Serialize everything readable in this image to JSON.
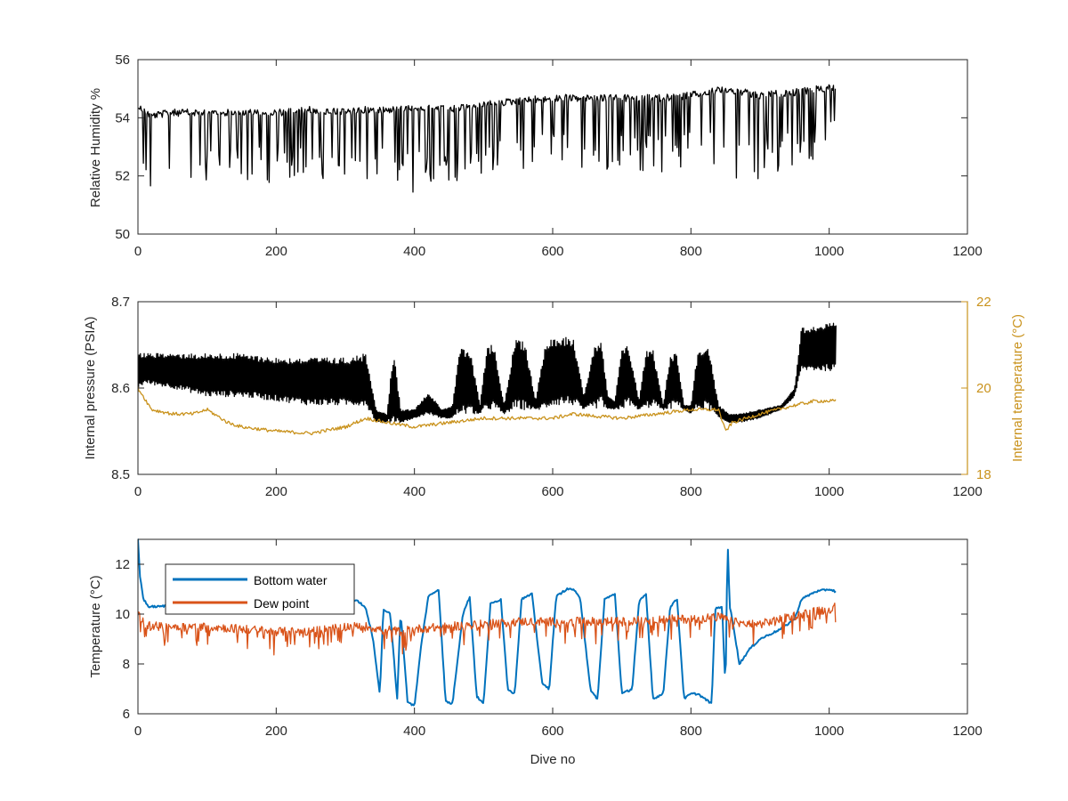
{
  "chart_data": [
    {
      "type": "line",
      "title": "",
      "xlabel": "",
      "ylabel": "Relative Humidity %",
      "xlim": [
        0,
        1200
      ],
      "ylim": [
        50,
        56
      ],
      "xticks": [
        0,
        200,
        400,
        600,
        800,
        1000,
        1200
      ],
      "yticks": [
        50,
        52,
        54,
        56
      ],
      "grid": false,
      "series": [
        {
          "name": "",
          "color": "#000000",
          "style": "spiky",
          "x": [
            0,
            20,
            50,
            100,
            150,
            200,
            250,
            300,
            330,
            360,
            400,
            450,
            500,
            550,
            600,
            650,
            700,
            750,
            800,
            850,
            900,
            950,
            1010
          ],
          "upper": [
            54.5,
            54.2,
            54.3,
            54.3,
            54.3,
            54.3,
            54.4,
            54.3,
            54.4,
            54.4,
            54.5,
            54.4,
            54.6,
            54.7,
            54.8,
            54.8,
            54.8,
            54.8,
            54.9,
            55.1,
            54.9,
            55.0,
            55.2
          ],
          "lower": [
            51.8,
            51.4,
            51.5,
            51.7,
            51.8,
            51.6,
            51.9,
            51.9,
            51.7,
            51.6,
            51.2,
            51.8,
            51.9,
            52.2,
            52.3,
            52.1,
            52.2,
            52.1,
            52.1,
            51.9,
            51.9,
            52.0,
            53.3
          ]
        }
      ]
    },
    {
      "type": "line",
      "title": "",
      "xlabel": "",
      "ylabel": "Internal pressure (PSIA)",
      "ylabel_right": "Internal temperature (°C)",
      "xlim": [
        0,
        1200
      ],
      "ylim": [
        8.5,
        8.7
      ],
      "ylim_right": [
        18,
        22
      ],
      "xticks": [
        0,
        200,
        400,
        600,
        800,
        1000,
        1200
      ],
      "yticks": [
        8.5,
        8.6,
        8.7
      ],
      "yticks_right": [
        18,
        20,
        22
      ],
      "grid": false,
      "series": [
        {
          "name": "",
          "axis": "left",
          "color": "#000000",
          "style": "band",
          "x": [
            0,
            10,
            50,
            100,
            150,
            200,
            250,
            300,
            330,
            345,
            360,
            370,
            380,
            400,
            420,
            440,
            455,
            465,
            480,
            495,
            505,
            515,
            530,
            545,
            560,
            575,
            590,
            600,
            615,
            630,
            645,
            660,
            670,
            680,
            690,
            700,
            710,
            725,
            735,
            745,
            760,
            770,
            780,
            790,
            800,
            810,
            825,
            840,
            855,
            870,
            900,
            930,
            950,
            960,
            1000,
            1010
          ],
          "upper": [
            8.64,
            8.64,
            8.64,
            8.64,
            8.64,
            8.635,
            8.635,
            8.635,
            8.64,
            8.575,
            8.57,
            8.645,
            8.575,
            8.575,
            8.595,
            8.575,
            8.58,
            8.645,
            8.645,
            8.58,
            8.65,
            8.65,
            8.58,
            8.655,
            8.655,
            8.585,
            8.655,
            8.66,
            8.66,
            8.66,
            8.59,
            8.65,
            8.655,
            8.59,
            8.585,
            8.645,
            8.65,
            8.585,
            8.645,
            8.645,
            8.58,
            8.64,
            8.64,
            8.58,
            8.58,
            8.645,
            8.65,
            8.58,
            8.57,
            8.57,
            8.575,
            8.58,
            8.6,
            8.67,
            8.675,
            8.675
          ],
          "lower": [
            8.6,
            8.605,
            8.6,
            8.59,
            8.59,
            8.585,
            8.58,
            8.58,
            8.58,
            8.56,
            8.56,
            8.56,
            8.56,
            8.565,
            8.57,
            8.565,
            8.565,
            8.57,
            8.57,
            8.57,
            8.575,
            8.575,
            8.57,
            8.575,
            8.575,
            8.575,
            8.575,
            8.58,
            8.58,
            8.58,
            8.575,
            8.575,
            8.58,
            8.575,
            8.575,
            8.575,
            8.58,
            8.575,
            8.575,
            8.58,
            8.575,
            8.575,
            8.58,
            8.575,
            8.57,
            8.575,
            8.575,
            8.565,
            8.56,
            8.56,
            8.565,
            8.575,
            8.59,
            8.62,
            8.62,
            8.62
          ]
        },
        {
          "name": "",
          "axis": "right",
          "color": "#C9921C",
          "style": "line",
          "x": [
            0,
            20,
            50,
            80,
            100,
            130,
            150,
            200,
            250,
            300,
            330,
            360,
            400,
            450,
            500,
            550,
            600,
            630,
            660,
            700,
            750,
            800,
            840,
            850,
            860,
            880,
            900,
            950,
            980,
            1010
          ],
          "y": [
            20.0,
            19.5,
            19.4,
            19.4,
            19.5,
            19.2,
            19.1,
            19.0,
            18.95,
            19.1,
            19.3,
            19.2,
            19.1,
            19.2,
            19.3,
            19.3,
            19.3,
            19.4,
            19.35,
            19.3,
            19.4,
            19.5,
            19.5,
            19.0,
            19.2,
            19.3,
            19.4,
            19.6,
            19.7,
            19.7
          ]
        }
      ]
    },
    {
      "type": "line",
      "title": "",
      "xlabel": "Dive no",
      "ylabel": "Temperature (°C)",
      "xlim": [
        0,
        1200
      ],
      "ylim": [
        6,
        13
      ],
      "xticks": [
        0,
        200,
        400,
        600,
        800,
        1000,
        1200
      ],
      "yticks": [
        6,
        8,
        10,
        12
      ],
      "grid": false,
      "legend": "top-left",
      "series": [
        {
          "name": "Bottom water",
          "color": "#0072BD",
          "style": "line",
          "x": [
            0,
            3,
            8,
            15,
            30,
            60,
            100,
            150,
            200,
            250,
            300,
            320,
            330,
            340,
            350,
            355,
            365,
            375,
            380,
            390,
            400,
            410,
            420,
            435,
            445,
            455,
            470,
            480,
            490,
            500,
            510,
            525,
            535,
            545,
            555,
            570,
            585,
            595,
            605,
            620,
            630,
            640,
            655,
            665,
            675,
            690,
            700,
            715,
            725,
            735,
            745,
            760,
            770,
            780,
            790,
            800,
            810,
            820,
            830,
            835,
            845,
            850,
            853,
            856,
            860,
            870,
            885,
            900,
            930,
            950,
            960,
            980,
            1000,
            1010
          ],
          "y": [
            13.0,
            11.5,
            10.6,
            10.3,
            10.3,
            10.4,
            10.5,
            10.5,
            10.6,
            10.5,
            10.6,
            10.5,
            10.2,
            9.0,
            6.8,
            10.2,
            10.0,
            6.6,
            10.1,
            6.5,
            6.3,
            8.8,
            10.7,
            11.0,
            6.5,
            6.4,
            10.0,
            10.7,
            6.7,
            6.4,
            10.4,
            10.6,
            7.0,
            6.8,
            10.6,
            10.8,
            7.2,
            7.0,
            10.7,
            11.0,
            11.0,
            10.6,
            6.9,
            6.6,
            10.6,
            10.8,
            6.8,
            7.0,
            10.5,
            10.8,
            6.6,
            6.8,
            10.3,
            10.6,
            6.6,
            6.8,
            6.8,
            6.6,
            6.4,
            10.2,
            10.3,
            7.0,
            13.0,
            10.3,
            9.8,
            8.0,
            8.6,
            9.0,
            9.4,
            9.8,
            10.6,
            10.9,
            11.0,
            10.9
          ]
        },
        {
          "name": "Dew point",
          "color": "#D95319",
          "style": "noisy",
          "x": [
            0,
            10,
            30,
            60,
            100,
            150,
            200,
            250,
            300,
            330,
            350,
            380,
            400,
            450,
            500,
            550,
            600,
            650,
            700,
            750,
            800,
            840,
            850,
            860,
            880,
            900,
            930,
            960,
            1000,
            1010
          ],
          "y": [
            10.0,
            9.6,
            9.5,
            9.5,
            9.5,
            9.4,
            9.3,
            9.3,
            9.5,
            9.5,
            9.4,
            9.3,
            9.4,
            9.5,
            9.6,
            9.7,
            9.7,
            9.7,
            9.7,
            9.8,
            9.8,
            9.9,
            9.8,
            9.7,
            9.6,
            9.6,
            9.8,
            10.0,
            10.2,
            10.3
          ]
        }
      ]
    }
  ]
}
